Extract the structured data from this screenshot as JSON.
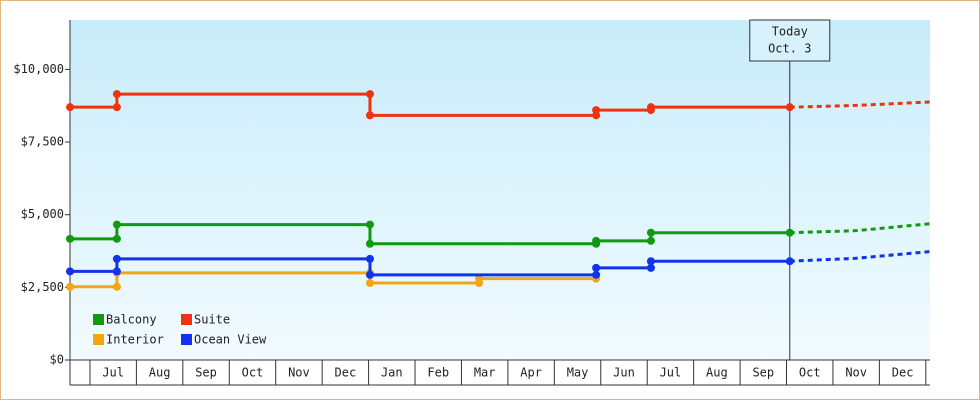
{
  "chart_data": {
    "type": "step-line",
    "categories": [
      "Jul",
      "Aug",
      "Sep",
      "Oct",
      "Nov",
      "Dec",
      "Jan",
      "Feb",
      "Mar",
      "Apr",
      "May",
      "Jun",
      "Jul",
      "Aug",
      "Sep",
      "Oct",
      "Nov",
      "Dec"
    ],
    "xlim": [
      -0.43,
      18.09
    ],
    "xticks": [
      0,
      1,
      2,
      3,
      4,
      5,
      6,
      7,
      8,
      9,
      10,
      11,
      12,
      13,
      14,
      15,
      16,
      17,
      18
    ],
    "ylim": [
      0,
      11700
    ],
    "yticks": [
      {
        "value": 0,
        "label": "$0"
      },
      {
        "value": 2500,
        "label": "$2,500"
      },
      {
        "value": 5000,
        "label": "$5,000"
      },
      {
        "value": 7500,
        "label": "$7,500"
      },
      {
        "value": 10000,
        "label": "$10,000"
      }
    ],
    "today": {
      "x": 15.07,
      "label": [
        "Today",
        "Oct. 3"
      ]
    },
    "legend": "bottom-left",
    "series": [
      {
        "name": "Balcony",
        "color": "#119911",
        "x": [
          -0.43,
          0.58,
          0.58,
          6.03,
          6.03,
          10.9,
          10.9,
          12.08,
          12.08,
          15.07
        ],
        "values": [
          4170,
          4170,
          4660,
          4660,
          4000,
          4000,
          4100,
          4100,
          4380,
          4380
        ],
        "forecast_x": [
          16.5,
          18.09
        ],
        "forecast_values": [
          4450,
          4690
        ]
      },
      {
        "name": "Suite",
        "color": "#ee3311",
        "x": [
          -0.43,
          0.58,
          0.58,
          6.03,
          6.03,
          10.9,
          10.9,
          12.08,
          12.08,
          15.07
        ],
        "values": [
          8700,
          8700,
          9150,
          9150,
          8420,
          8420,
          8600,
          8600,
          8700,
          8700
        ],
        "forecast_x": [
          16.5,
          18.09
        ],
        "forecast_values": [
          8760,
          8880
        ]
      },
      {
        "name": "Interior",
        "color": "#f5a511",
        "x": [
          -0.43,
          0.58,
          0.58,
          6.03,
          6.03,
          8.38,
          8.38,
          10.9
        ],
        "values": [
          2520,
          2520,
          3000,
          3000,
          2650,
          2650,
          2800,
          2800
        ]
      },
      {
        "name": "Ocean View",
        "color": "#1133ee",
        "x": [
          -0.43,
          0.58,
          0.58,
          6.03,
          6.03,
          10.9,
          10.9,
          12.08,
          12.08,
          15.07
        ],
        "values": [
          3050,
          3050,
          3480,
          3480,
          2930,
          2930,
          3170,
          3170,
          3400,
          3400
        ],
        "forecast_x": [
          16.5,
          18.09
        ],
        "forecast_values": [
          3500,
          3730
        ]
      }
    ]
  }
}
